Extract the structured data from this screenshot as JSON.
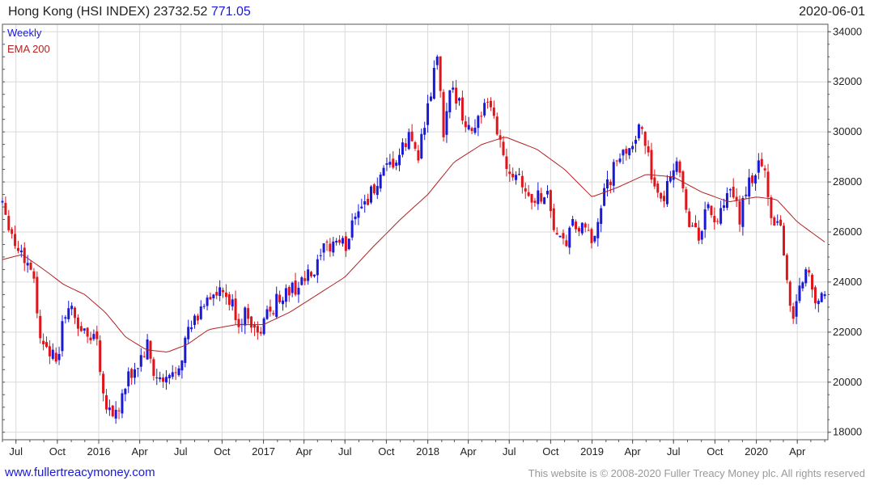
{
  "header": {
    "name": "Hong Kong (HSI INDEX)",
    "price": "23732.52",
    "change": "771.05",
    "date": "2020-06-01"
  },
  "footer": {
    "website": "www.fullertreacymoney.com",
    "copyright": "This website is © 2008-2020 Fuller Treacy Money plc. All rights reserved"
  },
  "colors": {
    "up": "#1a1ad6",
    "down": "#e0141b",
    "ema": "#b22222",
    "grid": "#d9d9d9"
  },
  "chart_data": {
    "type": "candlestick",
    "frequency_label": "Weekly",
    "legend": [
      "Weekly",
      "EMA 200"
    ],
    "legend_colors": [
      "#1a1ad6",
      "#b22222"
    ],
    "x_range": [
      "2015-06-01",
      "2020-06-08"
    ],
    "ylim": [
      17700,
      34300
    ],
    "y_ticks": [
      34000,
      32000,
      30000,
      28000,
      26000,
      24000,
      22000,
      20000,
      18000
    ],
    "x_tick_labels": [
      {
        "date": "2015-07-01",
        "label": "Jul"
      },
      {
        "date": "2015-10-01",
        "label": "Oct"
      },
      {
        "date": "2016-01-01",
        "label": "2016"
      },
      {
        "date": "2016-04-01",
        "label": "Apr"
      },
      {
        "date": "2016-07-01",
        "label": "Jul"
      },
      {
        "date": "2016-10-01",
        "label": "Oct"
      },
      {
        "date": "2017-01-01",
        "label": "2017"
      },
      {
        "date": "2017-04-01",
        "label": "Apr"
      },
      {
        "date": "2017-07-01",
        "label": "Jul"
      },
      {
        "date": "2017-10-01",
        "label": "Oct"
      },
      {
        "date": "2018-01-01",
        "label": "2018"
      },
      {
        "date": "2018-04-01",
        "label": "Apr"
      },
      {
        "date": "2018-07-01",
        "label": "Jul"
      },
      {
        "date": "2018-10-01",
        "label": "Oct"
      },
      {
        "date": "2019-01-01",
        "label": "2019"
      },
      {
        "date": "2019-04-01",
        "label": "Apr"
      },
      {
        "date": "2019-07-01",
        "label": "Jul"
      },
      {
        "date": "2019-10-01",
        "label": "Oct"
      },
      {
        "date": "2020-01-01",
        "label": "2020"
      },
      {
        "date": "2020-04-01",
        "label": "Apr"
      }
    ],
    "price_anchors": [
      [
        "2015-06-01",
        27300
      ],
      [
        "2015-06-29",
        25500
      ],
      [
        "2015-07-13",
        25200
      ],
      [
        "2015-08-10",
        24300
      ],
      [
        "2015-08-24",
        21600
      ],
      [
        "2015-09-07",
        21700
      ],
      [
        "2015-09-28",
        20600
      ],
      [
        "2015-10-19",
        22900
      ],
      [
        "2015-11-02",
        22800
      ],
      [
        "2015-11-23",
        22100
      ],
      [
        "2015-12-07",
        21800
      ],
      [
        "2015-12-28",
        21900
      ],
      [
        "2016-01-11",
        19500
      ],
      [
        "2016-02-01",
        18700
      ],
      [
        "2016-02-15",
        19000
      ],
      [
        "2016-03-07",
        20100
      ],
      [
        "2016-03-28",
        20700
      ],
      [
        "2016-04-18",
        21400
      ],
      [
        "2016-05-02",
        20300
      ],
      [
        "2016-05-23",
        19900
      ],
      [
        "2016-06-13",
        20300
      ],
      [
        "2016-06-27",
        20800
      ],
      [
        "2016-07-18",
        22000
      ],
      [
        "2016-08-08",
        22600
      ],
      [
        "2016-08-29",
        23500
      ],
      [
        "2016-09-12",
        23400
      ],
      [
        "2016-10-03",
        23500
      ],
      [
        "2016-10-24",
        23000
      ],
      [
        "2016-11-07",
        22400
      ],
      [
        "2016-11-28",
        22800
      ],
      [
        "2016-12-19",
        21800
      ],
      [
        "2017-01-09",
        22700
      ],
      [
        "2017-02-06",
        23400
      ],
      [
        "2017-03-06",
        23700
      ],
      [
        "2017-04-03",
        24100
      ],
      [
        "2017-04-24",
        24300
      ],
      [
        "2017-05-15",
        25200
      ],
      [
        "2017-06-12",
        25700
      ],
      [
        "2017-07-03",
        25400
      ],
      [
        "2017-07-24",
        26900
      ],
      [
        "2017-08-14",
        27200
      ],
      [
        "2017-09-04",
        27700
      ],
      [
        "2017-10-02",
        28400
      ],
      [
        "2017-10-30",
        29000
      ],
      [
        "2017-11-20",
        29800
      ],
      [
        "2017-12-11",
        29200
      ],
      [
        "2018-01-01",
        30800
      ],
      [
        "2018-01-22",
        33100
      ],
      [
        "2018-02-05",
        29800
      ],
      [
        "2018-02-19",
        31400
      ],
      [
        "2018-03-12",
        31500
      ],
      [
        "2018-03-26",
        30100
      ],
      [
        "2018-04-16",
        30300
      ],
      [
        "2018-05-07",
        31000
      ],
      [
        "2018-05-28",
        30600
      ],
      [
        "2018-06-18",
        29100
      ],
      [
        "2018-07-02",
        28500
      ],
      [
        "2018-07-23",
        28400
      ],
      [
        "2018-08-13",
        27300
      ],
      [
        "2018-09-03",
        27400
      ],
      [
        "2018-09-24",
        27600
      ],
      [
        "2018-10-08",
        26200
      ],
      [
        "2018-10-29",
        25400
      ],
      [
        "2018-11-19",
        26200
      ],
      [
        "2018-12-10",
        26100
      ],
      [
        "2018-12-31",
        25600
      ],
      [
        "2019-01-21",
        27100
      ],
      [
        "2019-02-18",
        28500
      ],
      [
        "2019-03-11",
        29100
      ],
      [
        "2019-04-08",
        29900
      ],
      [
        "2019-04-22",
        30000
      ],
      [
        "2019-05-06",
        29300
      ],
      [
        "2019-05-20",
        27500
      ],
      [
        "2019-06-03",
        27000
      ],
      [
        "2019-06-24",
        28500
      ],
      [
        "2019-07-15",
        28700
      ],
      [
        "2019-08-05",
        26200
      ],
      [
        "2019-08-26",
        25900
      ],
      [
        "2019-09-16",
        27000
      ],
      [
        "2019-10-07",
        26300
      ],
      [
        "2019-11-04",
        27600
      ],
      [
        "2019-11-25",
        26600
      ],
      [
        "2019-12-16",
        27900
      ],
      [
        "2020-01-13",
        28900
      ],
      [
        "2020-02-03",
        26700
      ],
      [
        "2020-02-24",
        26300
      ],
      [
        "2020-03-09",
        24000
      ],
      [
        "2020-03-23",
        22500
      ],
      [
        "2020-04-06",
        24000
      ],
      [
        "2020-04-27",
        24500
      ],
      [
        "2020-05-18",
        22900
      ],
      [
        "2020-06-01",
        23732
      ]
    ],
    "ema_anchors": [
      [
        "2015-06-01",
        24900
      ],
      [
        "2015-07-15",
        25100
      ],
      [
        "2015-09-01",
        24500
      ],
      [
        "2015-10-15",
        23900
      ],
      [
        "2015-12-01",
        23500
      ],
      [
        "2016-01-15",
        22800
      ],
      [
        "2016-03-01",
        21800
      ],
      [
        "2016-04-15",
        21300
      ],
      [
        "2016-06-01",
        21200
      ],
      [
        "2016-07-15",
        21500
      ],
      [
        "2016-09-01",
        22100
      ],
      [
        "2016-11-01",
        22300
      ],
      [
        "2017-01-01",
        22300
      ],
      [
        "2017-03-01",
        22800
      ],
      [
        "2017-05-01",
        23500
      ],
      [
        "2017-07-01",
        24200
      ],
      [
        "2017-09-01",
        25400
      ],
      [
        "2017-11-01",
        26500
      ],
      [
        "2018-01-01",
        27500
      ],
      [
        "2018-03-01",
        28800
      ],
      [
        "2018-05-01",
        29500
      ],
      [
        "2018-06-22",
        29800
      ],
      [
        "2018-09-01",
        29300
      ],
      [
        "2018-11-01",
        28500
      ],
      [
        "2019-01-01",
        27400
      ],
      [
        "2019-03-01",
        27800
      ],
      [
        "2019-05-01",
        28300
      ],
      [
        "2019-07-01",
        28200
      ],
      [
        "2019-09-01",
        27600
      ],
      [
        "2019-11-01",
        27200
      ],
      [
        "2020-01-01",
        27400
      ],
      [
        "2020-02-15",
        27300
      ],
      [
        "2020-04-01",
        26400
      ],
      [
        "2020-06-01",
        25600
      ]
    ]
  }
}
